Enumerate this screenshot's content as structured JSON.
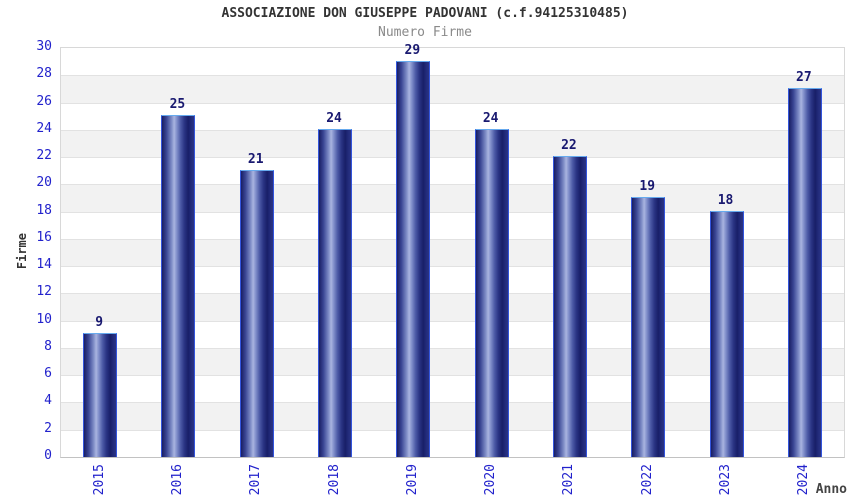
{
  "header": {
    "title": "ASSOCIAZIONE DON GIUSEPPE PADOVANI (c.f.94125310485)",
    "subtitle": "Numero Firme"
  },
  "chart_data": {
    "type": "bar",
    "title": "ASSOCIAZIONE DON GIUSEPPE PADOVANI (c.f.94125310485)",
    "subtitle": "Numero Firme",
    "categories": [
      "2015",
      "2016",
      "2017",
      "2018",
      "2019",
      "2020",
      "2021",
      "2022",
      "2023",
      "2024"
    ],
    "values": [
      9,
      25,
      21,
      24,
      29,
      24,
      22,
      19,
      18,
      27
    ],
    "xlabel": "Anno",
    "ylabel": "Firme",
    "ylim": [
      0,
      30
    ],
    "ytick_step": 2,
    "ytick_labels": [
      "0",
      "2",
      "4",
      "6",
      "8",
      "10",
      "12",
      "14",
      "16",
      "18",
      "20",
      "22",
      "24",
      "26",
      "28",
      "30"
    ],
    "bar_value_labels": [
      "9",
      "25",
      "21",
      "24",
      "29",
      "24",
      "22",
      "19",
      "18",
      "27"
    ],
    "grid": "horizontal-bands-alternating",
    "legend": "none",
    "colors": {
      "axis_tick_text": "#2222cc",
      "bar_value_text": "#191970",
      "title_text": "#333333",
      "subtitle_text": "#8a8a8a",
      "axis_title_text": "#333333",
      "band_gray": "#f2f2f2",
      "band_white": "#ffffff",
      "plot_border": "#d8d8d8",
      "bar_border_side": "#3355dd",
      "bar_border_top": "#66aaee",
      "bar_dark": "#191e63",
      "bar_light": "#a9b4e0"
    }
  }
}
